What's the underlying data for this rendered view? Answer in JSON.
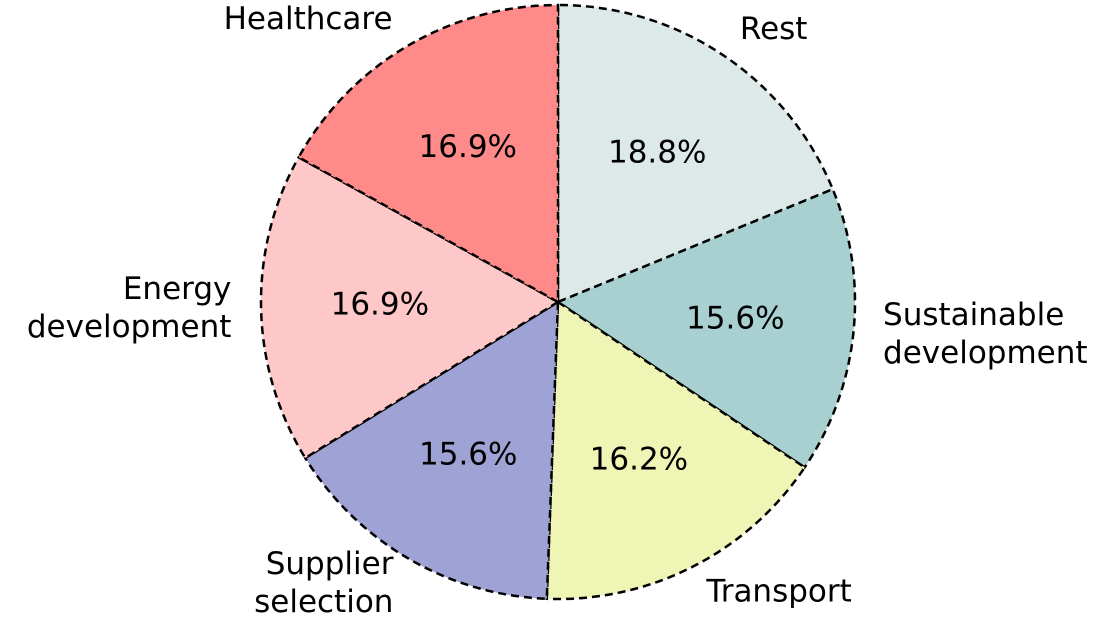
{
  "chart_data": {
    "type": "pie",
    "categories": [
      "Rest",
      "Sustainable\ndevelopment",
      "Transport",
      "Supplier\nselection",
      "Energy\ndevelopment",
      "Healthcare"
    ],
    "values": [
      18.8,
      15.6,
      16.2,
      15.6,
      16.9,
      16.9
    ],
    "value_labels": [
      "18.8%",
      "15.6%",
      "16.2%",
      "15.6%",
      "16.9%",
      "16.9%"
    ],
    "colors": [
      "#dde9e9",
      "#a9d0d0",
      "#eff5b5",
      "#9fa2d4",
      "#fec8c8",
      "#fe8a8a"
    ],
    "startangle": 90,
    "counterclock": false
  }
}
